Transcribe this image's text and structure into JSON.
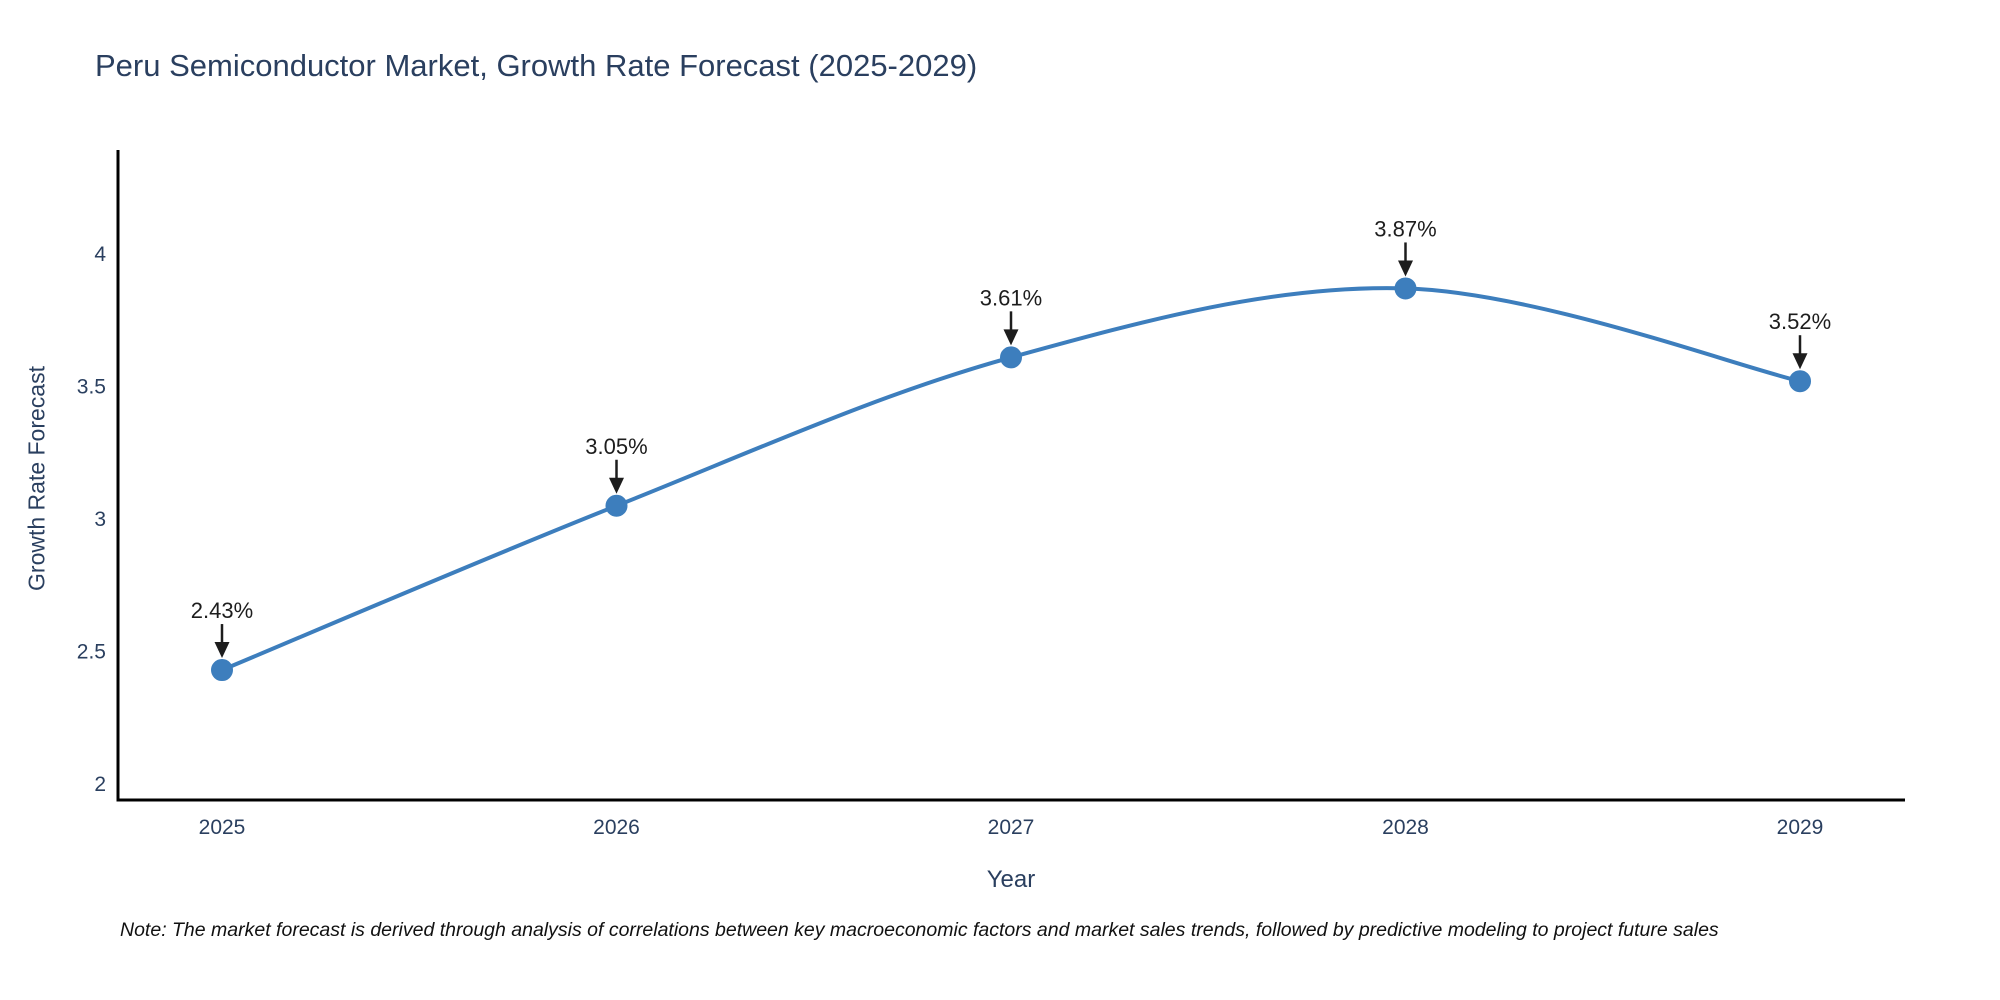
{
  "chart_data": {
    "type": "line",
    "title": "Peru Semiconductor Market, Growth Rate Forecast (2025-2029)",
    "xlabel": "Year",
    "ylabel": "Growth Rate Forecast",
    "x": [
      2025,
      2026,
      2027,
      2028,
      2029
    ],
    "values": [
      2.43,
      3.05,
      3.61,
      3.87,
      3.52
    ],
    "point_labels": [
      "2.43%",
      "3.05%",
      "3.61%",
      "3.87%",
      "3.52%"
    ],
    "x_tick_labels": [
      "2025",
      "2026",
      "2027",
      "2028",
      "2029"
    ],
    "y_tick_labels": [
      "2",
      "2.5",
      "3",
      "3.5",
      "4"
    ],
    "y_tick_values": [
      2,
      2.5,
      3,
      3.5,
      4
    ],
    "ylim": [
      1.94,
      4.4
    ],
    "xlim": [
      2024.74,
      2029.27
    ],
    "grid": false,
    "legend": false,
    "curve": "spline",
    "line_color": "#3d7ebd",
    "marker_color": "#3d7ebd",
    "axis_color": "#000000",
    "tick_text_color": "#2a3f5f",
    "annotation_color": "#1d1d1d"
  },
  "footnote": {
    "text": "Note: The market forecast is derived through analysis of correlations between key macroeconomic factors and market sales trends, followed by predictive modeling to project future sales"
  }
}
